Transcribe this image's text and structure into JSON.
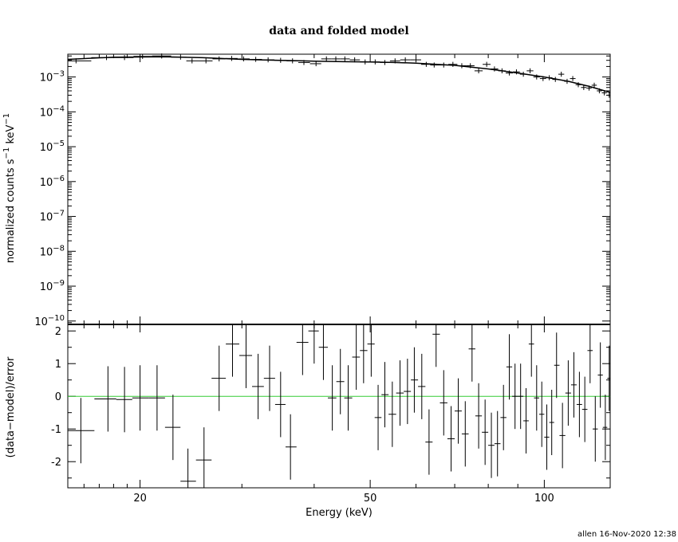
{
  "chart_data": [
    {
      "type": "scatter",
      "panel": "spectrum",
      "title": "data and folded model",
      "ylabel_main": "normalized counts s",
      "ylabel_sup1": "−1",
      "ylabel_mid": " keV",
      "ylabel_sup2": "−1",
      "yscale": "log",
      "xscale": "log",
      "xlim": [
        15,
        130
      ],
      "ylim": [
        8e-11,
        0.0045
      ],
      "y_tick_labels": [
        {
          "base": "10",
          "exp": "−3",
          "value": 0.001
        },
        {
          "base": "10",
          "exp": "−4",
          "value": 0.0001
        },
        {
          "base": "10",
          "exp": "−5",
          "value": 1e-05
        },
        {
          "base": "10",
          "exp": "−6",
          "value": 1e-06
        },
        {
          "base": "10",
          "exp": "−7",
          "value": 1e-07
        },
        {
          "base": "10",
          "exp": "−8",
          "value": 1e-08
        },
        {
          "base": "10",
          "exp": "−9",
          "value": 1e-09
        },
        {
          "base": "10",
          "exp": "−10",
          "value": 1e-10
        }
      ],
      "points": [
        [
          15.5,
          0.0029
        ],
        [
          17.5,
          0.0036
        ],
        [
          18.8,
          0.0036
        ],
        [
          20.2,
          0.0039
        ],
        [
          21.8,
          0.004
        ],
        [
          23.5,
          0.0037
        ],
        [
          24.6,
          0.0029
        ],
        [
          26.0,
          0.0029
        ],
        [
          27.4,
          0.0033
        ],
        [
          28.8,
          0.0034
        ],
        [
          30.2,
          0.0033
        ],
        [
          31.7,
          0.0032
        ],
        [
          33.3,
          0.0031
        ],
        [
          35.0,
          0.003
        ],
        [
          36.7,
          0.0029
        ],
        [
          38.4,
          0.0026
        ],
        [
          40.3,
          0.0024
        ],
        [
          42.0,
          0.0033
        ],
        [
          43.6,
          0.0033
        ],
        [
          45.2,
          0.0033
        ],
        [
          47.0,
          0.0031
        ],
        [
          49.0,
          0.0027
        ],
        [
          51.0,
          0.0027
        ],
        [
          53.0,
          0.0026
        ],
        [
          55.2,
          0.0029
        ],
        [
          57.5,
          0.0031
        ],
        [
          60.0,
          0.0031
        ],
        [
          62.5,
          0.0023
        ],
        [
          64.5,
          0.0022
        ],
        [
          67.0,
          0.0022
        ],
        [
          69.5,
          0.0023
        ],
        [
          72.0,
          0.0021
        ],
        [
          74.5,
          0.0021
        ],
        [
          77.0,
          0.0015
        ],
        [
          79.5,
          0.0023
        ],
        [
          82.0,
          0.0017
        ],
        [
          84.5,
          0.0015
        ],
        [
          87.0,
          0.0013
        ],
        [
          89.5,
          0.0014
        ],
        [
          92.0,
          0.0012
        ],
        [
          94.5,
          0.0015
        ],
        [
          97.0,
          0.001
        ],
        [
          99.5,
          0.0009
        ],
        [
          102.0,
          0.00095
        ],
        [
          104.5,
          0.00085
        ],
        [
          107.0,
          0.0012
        ],
        [
          109.5,
          0.00075
        ],
        [
          112.0,
          0.0009
        ],
        [
          114.5,
          0.0006
        ],
        [
          117.0,
          0.0005
        ],
        [
          119.5,
          0.00048
        ],
        [
          122.0,
          0.00058
        ],
        [
          124.5,
          0.0004
        ],
        [
          127.0,
          0.00035
        ],
        [
          129.5,
          0.0003
        ]
      ],
      "model": [
        [
          15.0,
          0.0032
        ],
        [
          18.0,
          0.0037
        ],
        [
          22.0,
          0.0038
        ],
        [
          26.0,
          0.00355
        ],
        [
          30.0,
          0.0032
        ],
        [
          35.0,
          0.003
        ],
        [
          40.0,
          0.00285
        ],
        [
          45.0,
          0.00275
        ],
        [
          50.0,
          0.0027
        ],
        [
          55.0,
          0.0026
        ],
        [
          60.0,
          0.0025
        ],
        [
          70.0,
          0.00215
        ],
        [
          80.0,
          0.0017
        ],
        [
          90.0,
          0.0013
        ],
        [
          100.0,
          0.001
        ],
        [
          110.0,
          0.00075
        ],
        [
          120.0,
          0.00053
        ],
        [
          130.0,
          0.00036
        ]
      ]
    },
    {
      "type": "scatter",
      "panel": "residuals",
      "ylabel": "(data−model)/error",
      "xlabel": "Energy (keV)",
      "xscale": "log",
      "xlim": [
        15,
        130
      ],
      "ylim": [
        -2.8,
        2.2
      ],
      "y_ticks": [
        -2,
        -1,
        0,
        1,
        2
      ],
      "x_tick_labels": [
        {
          "label": "20",
          "value": 20
        },
        {
          "label": "50",
          "value": 50
        },
        {
          "label": "100",
          "value": 100
        }
      ],
      "zero_line_color": "#33cc33",
      "points": [
        [
          15.8,
          -1.05
        ],
        [
          17.6,
          -0.08
        ],
        [
          18.8,
          -0.1
        ],
        [
          20.0,
          -0.05
        ],
        [
          21.4,
          -0.05
        ],
        [
          22.8,
          -0.95
        ],
        [
          24.2,
          -2.6
        ],
        [
          25.8,
          -1.95
        ],
        [
          27.4,
          0.55
        ],
        [
          28.9,
          1.6
        ],
        [
          30.5,
          1.25
        ],
        [
          32.0,
          0.3
        ],
        [
          33.5,
          0.55
        ],
        [
          35.0,
          -0.25
        ],
        [
          36.4,
          -1.55
        ],
        [
          38.2,
          1.65
        ],
        [
          40.0,
          2.0
        ],
        [
          41.5,
          1.5
        ],
        [
          43.0,
          -0.05
        ],
        [
          44.4,
          0.45
        ],
        [
          45.8,
          -0.05
        ],
        [
          47.3,
          1.2
        ],
        [
          48.7,
          1.4
        ],
        [
          50.2,
          1.6
        ],
        [
          51.6,
          -0.65
        ],
        [
          53.0,
          0.05
        ],
        [
          54.6,
          -0.55
        ],
        [
          56.3,
          0.1
        ],
        [
          58.0,
          0.15
        ],
        [
          59.6,
          0.5
        ],
        [
          61.4,
          0.3
        ],
        [
          63.2,
          -1.4
        ],
        [
          65.0,
          1.9
        ],
        [
          67.0,
          -0.2
        ],
        [
          69.0,
          -1.3
        ],
        [
          71.0,
          -0.45
        ],
        [
          73.0,
          -1.15
        ],
        [
          75.0,
          1.45
        ],
        [
          77.0,
          -0.6
        ],
        [
          79.0,
          -1.1
        ],
        [
          81.0,
          -1.5
        ],
        [
          83.0,
          -1.45
        ],
        [
          85.0,
          -0.65
        ],
        [
          87.0,
          0.9
        ],
        [
          89.0,
          0.0
        ],
        [
          91.0,
          0.0
        ],
        [
          93.0,
          -0.75
        ],
        [
          95.0,
          1.6
        ],
        [
          97.0,
          -0.05
        ],
        [
          99.0,
          -0.55
        ],
        [
          101.0,
          -1.25
        ],
        [
          103.0,
          -0.8
        ],
        [
          105.0,
          0.95
        ],
        [
          107.5,
          -1.2
        ],
        [
          110.0,
          0.1
        ],
        [
          112.5,
          0.35
        ],
        [
          115.0,
          -0.25
        ],
        [
          117.5,
          -0.4
        ],
        [
          120.0,
          1.4
        ],
        [
          122.5,
          -1.0
        ],
        [
          125.0,
          0.65
        ],
        [
          127.5,
          -0.95
        ],
        [
          129.5,
          0.55
        ]
      ]
    }
  ],
  "footer": {
    "stamp": "allen 16-Nov-2020 12:38"
  }
}
